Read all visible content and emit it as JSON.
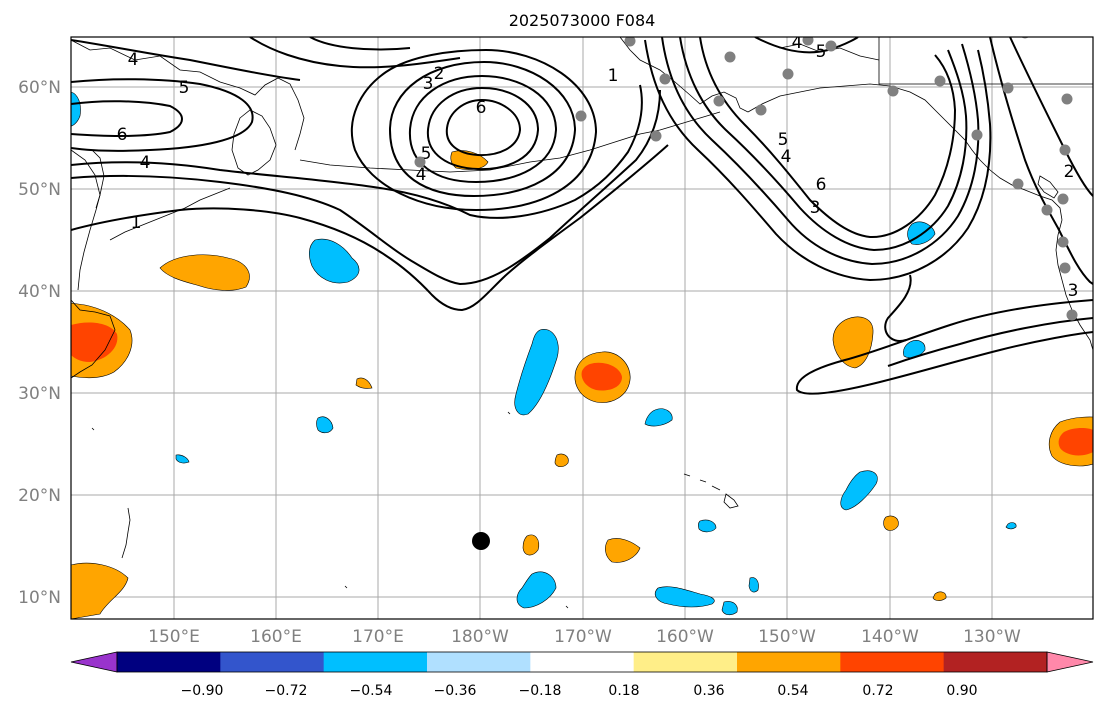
{
  "title": "2025073000 F084",
  "lat_labels": [
    "60°N",
    "50°N",
    "40°N",
    "30°N",
    "20°N",
    "10°N"
  ],
  "lon_labels": [
    "150°E",
    "160°E",
    "170°E",
    "180°W",
    "170°W",
    "160°W",
    "150°W",
    "140°W",
    "130°W"
  ],
  "colorbar": {
    "ticks": [
      "−0.90",
      "−0.72",
      "−0.54",
      "−0.36",
      "−0.18",
      "0.18",
      "0.36",
      "0.54",
      "0.72",
      "0.90"
    ],
    "colors": [
      "#9933CC",
      "#000080",
      "#3355CC",
      "#00BFFF",
      "#B0E0FF",
      "#FFFFFF",
      "#FFEE88",
      "#FFA500",
      "#FF4400",
      "#B22222",
      "#FF88AA"
    ]
  },
  "contour_labels": [
    "4",
    "5",
    "6",
    "4",
    "1",
    "2",
    "3",
    "6",
    "5",
    "4",
    "1",
    "4",
    "5",
    "5",
    "4",
    "6",
    "3",
    "2",
    "3"
  ],
  "colors": {
    "positive": "#FFA500",
    "positive_strong": "#FF4400",
    "negative": "#00BFFF",
    "contour": "#000000",
    "station": "#808080"
  }
}
